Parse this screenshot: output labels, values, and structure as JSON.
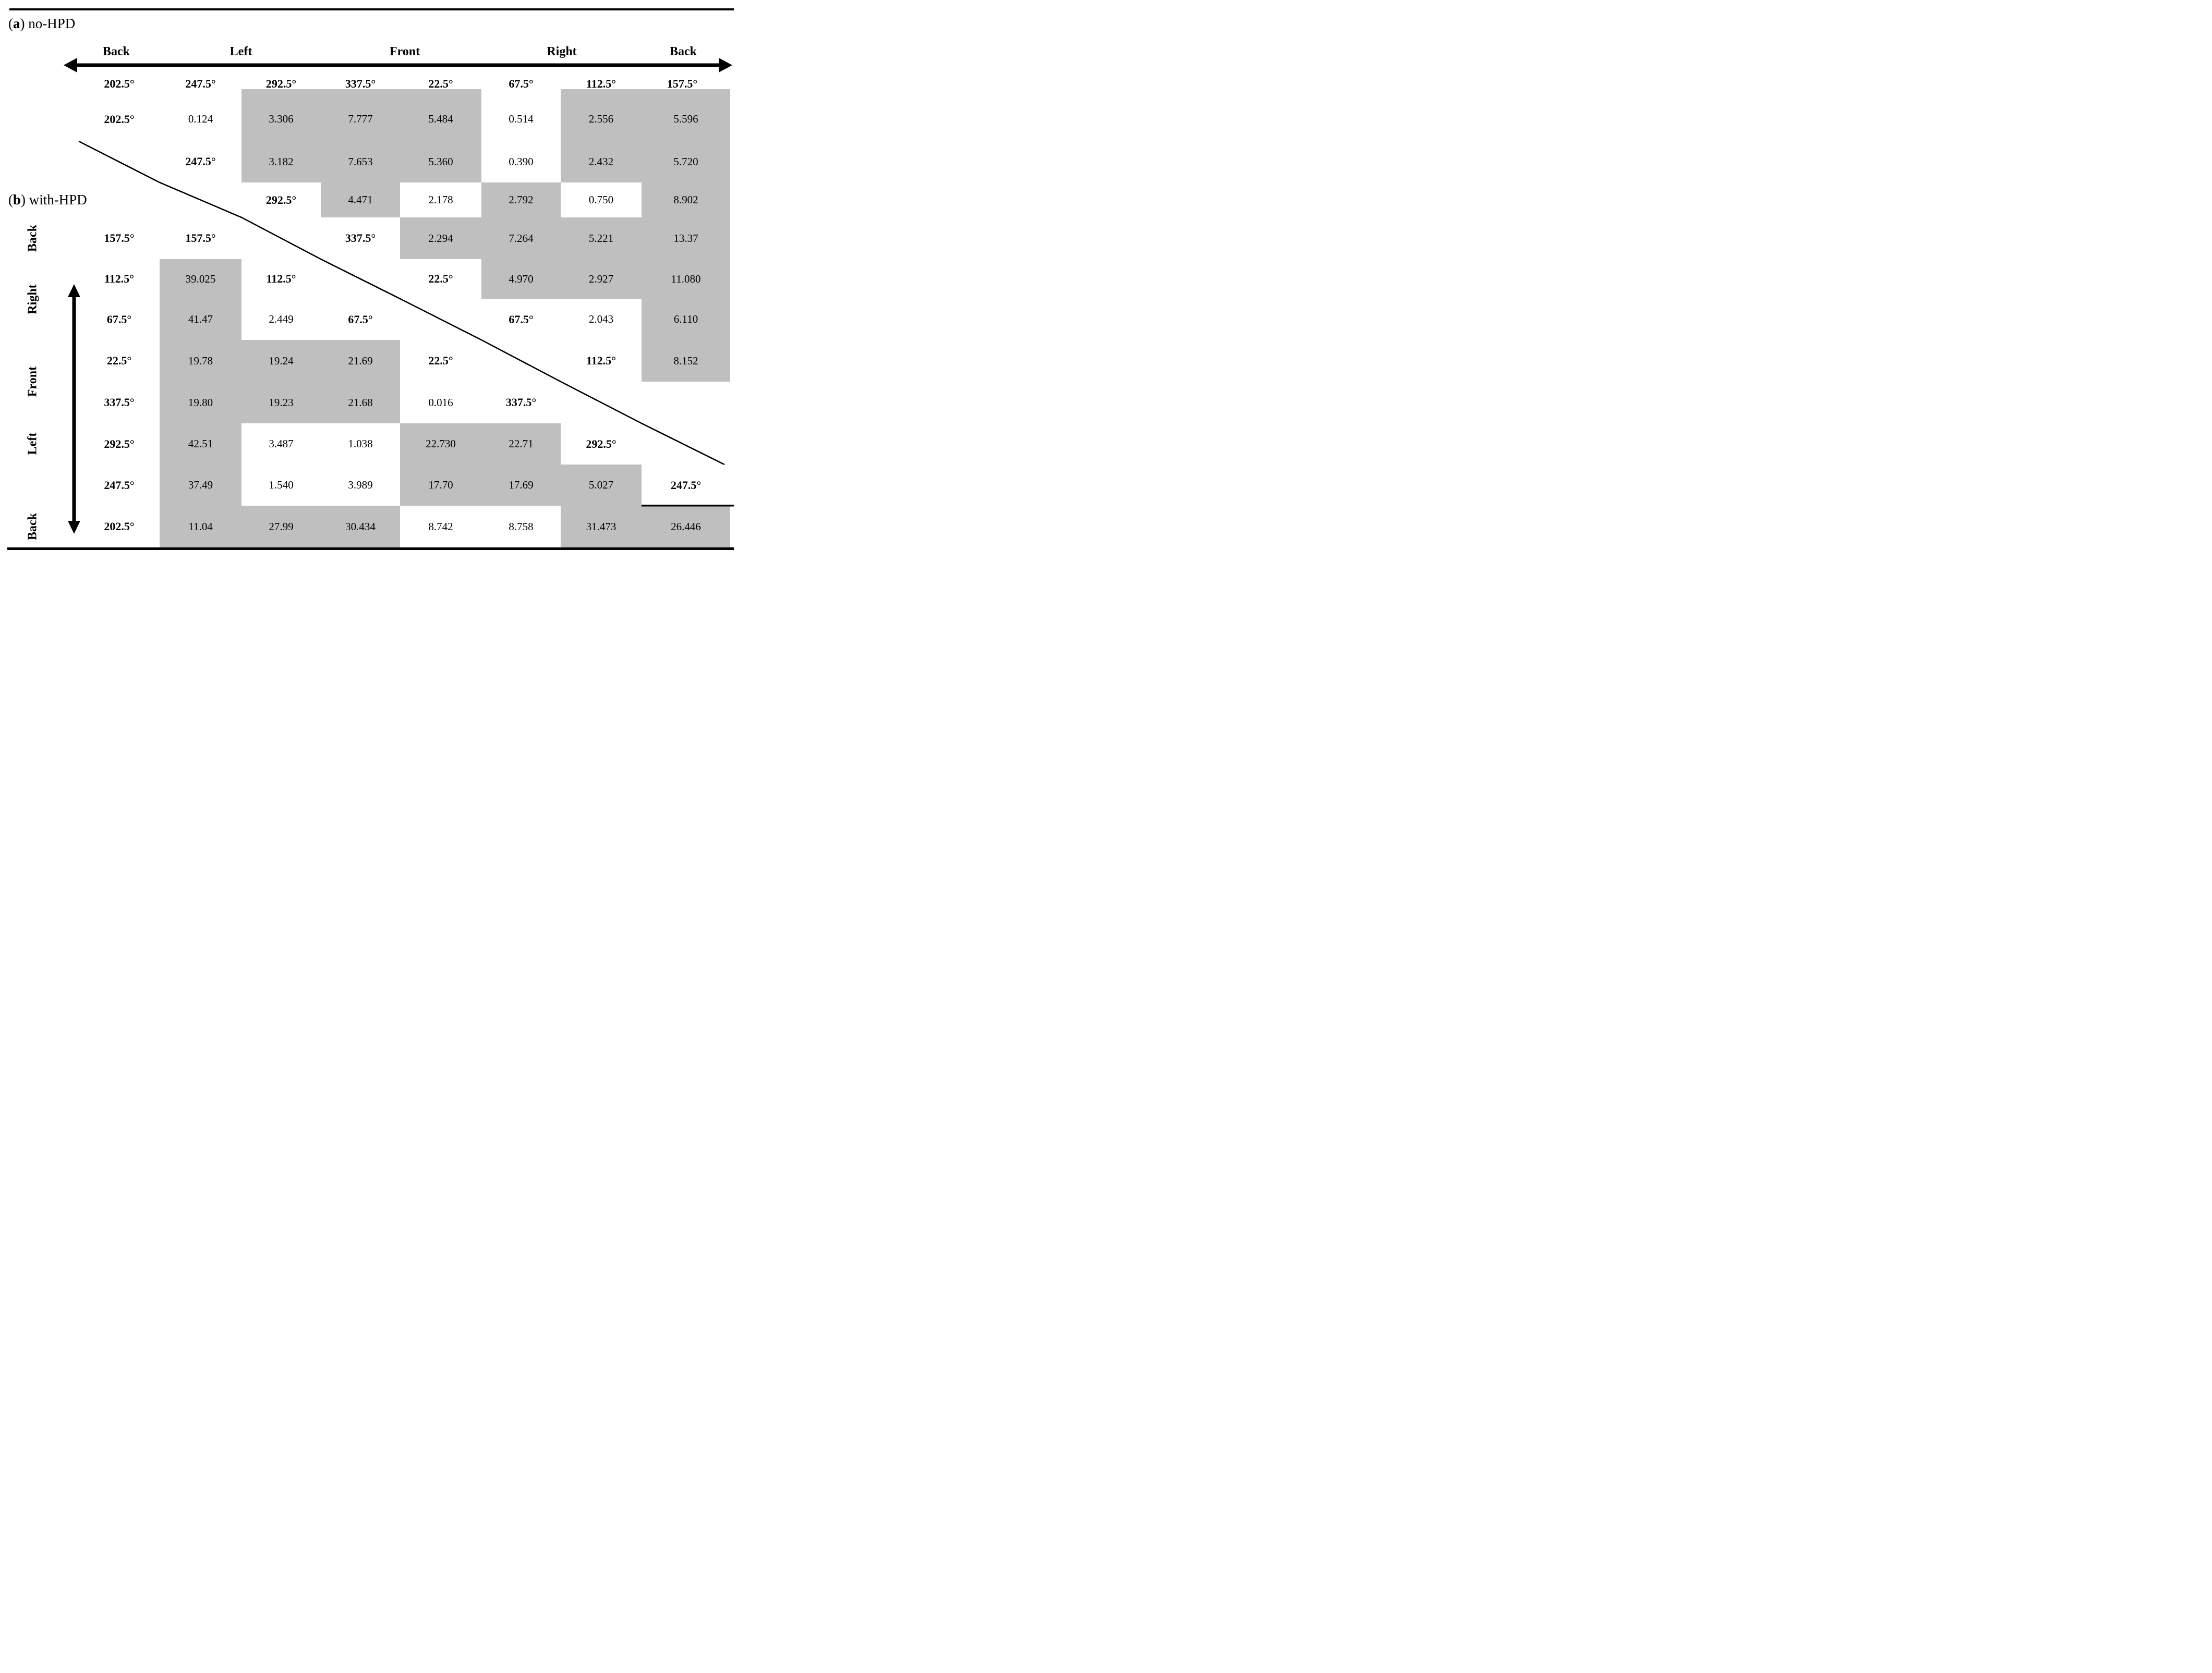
{
  "panel_a": {
    "open": "(",
    "key": "a",
    "rest": ") no-HPD"
  },
  "panel_b": {
    "open": "(",
    "key": "b",
    "rest": ") with-HPD"
  },
  "top_axis": {
    "labels": [
      "Back",
      "Left",
      "Front",
      "Right",
      "Back"
    ]
  },
  "left_axis": {
    "labels": [
      "Back",
      "Right",
      "Front",
      "Left",
      "Back"
    ]
  },
  "column_headers": [
    "202.5°",
    "247.5°",
    "292.5°",
    "337.5°",
    "22.5°",
    "67.5°",
    "112.5°",
    "157.5°"
  ],
  "colors": {
    "significant_cell_gray": "#bfbfbf",
    "text": "#000000"
  },
  "grid": {
    "rows": [
      {
        "cells": [
          {
            "t": "202.5°",
            "b": 1,
            "g": 0
          },
          {
            "t": "0.124",
            "b": 0,
            "g": 0
          },
          {
            "t": "3.306",
            "b": 0,
            "g": 1
          },
          {
            "t": "7.777",
            "b": 0,
            "g": 1
          },
          {
            "t": "5.484",
            "b": 0,
            "g": 1
          },
          {
            "t": "0.514",
            "b": 0,
            "g": 0
          },
          {
            "t": "2.556",
            "b": 0,
            "g": 1
          },
          {
            "t": "5.596",
            "b": 0,
            "g": 1
          }
        ]
      },
      {
        "cells": [
          {
            "t": "",
            "b": 0,
            "g": 0
          },
          {
            "t": "247.5°",
            "b": 1,
            "g": 0
          },
          {
            "t": "3.182",
            "b": 0,
            "g": 1
          },
          {
            "t": "7.653",
            "b": 0,
            "g": 1
          },
          {
            "t": "5.360",
            "b": 0,
            "g": 1
          },
          {
            "t": "0.390",
            "b": 0,
            "g": 0
          },
          {
            "t": "2.432",
            "b": 0,
            "g": 1
          },
          {
            "t": "5.720",
            "b": 0,
            "g": 1
          }
        ]
      },
      {
        "cells": [
          {
            "t": "",
            "b": 0,
            "g": 0
          },
          {
            "t": "",
            "b": 0,
            "g": 0
          },
          {
            "t": "292.5°",
            "b": 1,
            "g": 0
          },
          {
            "t": "4.471",
            "b": 0,
            "g": 1
          },
          {
            "t": "2.178",
            "b": 0,
            "g": 0
          },
          {
            "t": "2.792",
            "b": 0,
            "g": 1
          },
          {
            "t": "0.750",
            "b": 0,
            "g": 0
          },
          {
            "t": "8.902",
            "b": 0,
            "g": 1
          }
        ]
      },
      {
        "cells": [
          {
            "t": "157.5°",
            "b": 1,
            "g": 0
          },
          {
            "t": "157.5°",
            "b": 1,
            "g": 0
          },
          {
            "t": "",
            "b": 0,
            "g": 0
          },
          {
            "t": "337.5°",
            "b": 1,
            "g": 0
          },
          {
            "t": "2.294",
            "b": 0,
            "g": 1
          },
          {
            "t": "7.264",
            "b": 0,
            "g": 1
          },
          {
            "t": "5.221",
            "b": 0,
            "g": 1
          },
          {
            "t": "13.37",
            "b": 0,
            "g": 1
          }
        ]
      },
      {
        "cells": [
          {
            "t": "112.5°",
            "b": 1,
            "g": 0
          },
          {
            "t": "39.025",
            "b": 0,
            "g": 1
          },
          {
            "t": "112.5°",
            "b": 1,
            "g": 0
          },
          {
            "t": "",
            "b": 0,
            "g": 0
          },
          {
            "t": "22.5°",
            "b": 1,
            "g": 0
          },
          {
            "t": "4.970",
            "b": 0,
            "g": 1
          },
          {
            "t": "2.927",
            "b": 0,
            "g": 1
          },
          {
            "t": "11.080",
            "b": 0,
            "g": 1
          }
        ]
      },
      {
        "cells": [
          {
            "t": "67.5°",
            "b": 1,
            "g": 0
          },
          {
            "t": "41.47",
            "b": 0,
            "g": 1
          },
          {
            "t": "2.449",
            "b": 0,
            "g": 0
          },
          {
            "t": "67.5°",
            "b": 1,
            "g": 0
          },
          {
            "t": "",
            "b": 0,
            "g": 0
          },
          {
            "t": "67.5°",
            "b": 1,
            "g": 0
          },
          {
            "t": "2.043",
            "b": 0,
            "g": 0
          },
          {
            "t": "6.110",
            "b": 0,
            "g": 1
          }
        ]
      },
      {
        "cells": [
          {
            "t": "22.5°",
            "b": 1,
            "g": 0
          },
          {
            "t": "19.78",
            "b": 0,
            "g": 1
          },
          {
            "t": "19.24",
            "b": 0,
            "g": 1
          },
          {
            "t": "21.69",
            "b": 0,
            "g": 1
          },
          {
            "t": "22.5°",
            "b": 1,
            "g": 0
          },
          {
            "t": "",
            "b": 0,
            "g": 0
          },
          {
            "t": "112.5°",
            "b": 1,
            "g": 0
          },
          {
            "t": "8.152",
            "b": 0,
            "g": 1
          }
        ]
      },
      {
        "cells": [
          {
            "t": "337.5°",
            "b": 1,
            "g": 0
          },
          {
            "t": "19.80",
            "b": 0,
            "g": 1
          },
          {
            "t": "19.23",
            "b": 0,
            "g": 1
          },
          {
            "t": "21.68",
            "b": 0,
            "g": 1
          },
          {
            "t": "0.016",
            "b": 0,
            "g": 0
          },
          {
            "t": "337.5°",
            "b": 1,
            "g": 0
          },
          {
            "t": "",
            "b": 0,
            "g": 0
          },
          {
            "t": "",
            "b": 0,
            "g": 0
          }
        ]
      },
      {
        "cells": [
          {
            "t": "292.5°",
            "b": 1,
            "g": 0
          },
          {
            "t": "42.51",
            "b": 0,
            "g": 1
          },
          {
            "t": "3.487",
            "b": 0,
            "g": 0
          },
          {
            "t": "1.038",
            "b": 0,
            "g": 0
          },
          {
            "t": "22.730",
            "b": 0,
            "g": 1
          },
          {
            "t": "22.71",
            "b": 0,
            "g": 1
          },
          {
            "t": "292.5°",
            "b": 1,
            "g": 0
          },
          {
            "t": "",
            "b": 0,
            "g": 0
          }
        ]
      },
      {
        "cells": [
          {
            "t": "247.5°",
            "b": 1,
            "g": 0
          },
          {
            "t": "37.49",
            "b": 0,
            "g": 1
          },
          {
            "t": "1.540",
            "b": 0,
            "g": 0
          },
          {
            "t": "3.989",
            "b": 0,
            "g": 0
          },
          {
            "t": "17.70",
            "b": 0,
            "g": 1
          },
          {
            "t": "17.69",
            "b": 0,
            "g": 1
          },
          {
            "t": "5.027",
            "b": 0,
            "g": 1
          },
          {
            "t": "247.5°",
            "b": 1,
            "g": 0
          }
        ]
      },
      {
        "cells": [
          {
            "t": "202.5°",
            "b": 1,
            "g": 0
          },
          {
            "t": "11.04",
            "b": 0,
            "g": 1
          },
          {
            "t": "27.99",
            "b": 0,
            "g": 1
          },
          {
            "t": "30.434",
            "b": 0,
            "g": 1
          },
          {
            "t": "8.742",
            "b": 0,
            "g": 0
          },
          {
            "t": "8.758",
            "b": 0,
            "g": 0
          },
          {
            "t": "31.473",
            "b": 0,
            "g": 1
          },
          {
            "t": "26.446",
            "b": 0,
            "g": 1
          }
        ]
      }
    ]
  }
}
